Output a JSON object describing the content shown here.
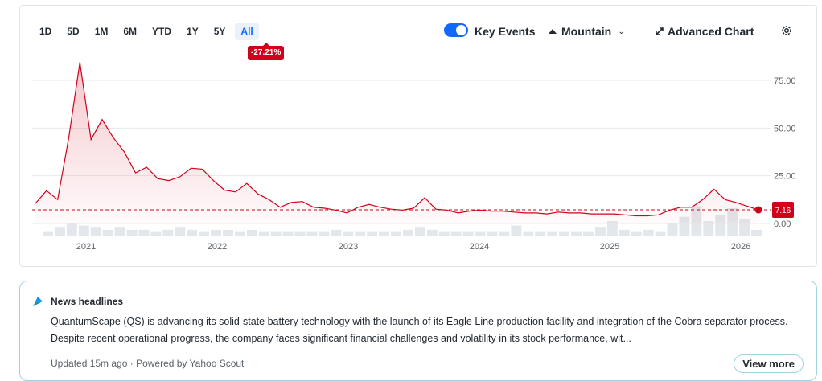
{
  "range_tabs": [
    "1D",
    "5D",
    "1M",
    "6M",
    "YTD",
    "1Y",
    "5Y",
    "All"
  ],
  "active_range": "All",
  "change_badge": "-27.21%",
  "key_events": {
    "label": "Key Events",
    "enabled": true
  },
  "chart_type_label": "Mountain",
  "advanced_chart_label": "Advanced Chart",
  "colors": {
    "accent": "#0f69ff",
    "negative": "#d0021b",
    "volume": "#e3e6ea"
  },
  "chart_data": {
    "type": "area",
    "x_ticks": [
      "2021",
      "2022",
      "2023",
      "2024",
      "2025",
      "2026"
    ],
    "y_ticks": [
      "75.00",
      "50.00",
      "25.00",
      "0.00"
    ],
    "ylim": [
      0,
      85
    ],
    "last_price_label": "7.16",
    "price": [
      10.5,
      17.2,
      12.5,
      45.0,
      84.5,
      44.0,
      54.5,
      45.0,
      37.5,
      26.5,
      29.5,
      23.5,
      22.5,
      24.5,
      29.0,
      28.5,
      22.5,
      17.5,
      16.5,
      21.0,
      15.5,
      12.5,
      8.5,
      11.0,
      11.5,
      8.5,
      8.0,
      7.0,
      5.5,
      8.5,
      10.0,
      8.5,
      7.5,
      7.0,
      8.0,
      13.5,
      7.5,
      7.0,
      5.5,
      6.5,
      7.0,
      6.5,
      6.5,
      6.0,
      5.5,
      5.5,
      5.0,
      6.0,
      5.5,
      5.5,
      5.0,
      5.0,
      5.0,
      4.5,
      4.0,
      4.0,
      4.5,
      7.0,
      8.5,
      8.5,
      12.5,
      18.0,
      12.5,
      11.0,
      9.0,
      7.16
    ],
    "volume": [
      2,
      4,
      6,
      5,
      4,
      3,
      4,
      3,
      3,
      2,
      3,
      4,
      3,
      2,
      3,
      3,
      2,
      3,
      2,
      2,
      2,
      2,
      2,
      2,
      3,
      2,
      2,
      2,
      2,
      2,
      3,
      4,
      3,
      2,
      2,
      2,
      2,
      2,
      2,
      5,
      2,
      2,
      2,
      2,
      2,
      2,
      4,
      7,
      3,
      2,
      3,
      2,
      6,
      9,
      14,
      7,
      10,
      13,
      8,
      3
    ]
  },
  "news": {
    "title": "News headlines",
    "body": "QuantumScape (QS) is advancing its solid-state battery technology with the launch of its Eagle Line production facility and integration of the Cobra separator process. Despite recent operational progress, the company faces significant financial challenges and volatility in its stock performance, wit...",
    "footer": "Updated 15m ago · Powered by Yahoo Scout",
    "view_more": "View more"
  }
}
